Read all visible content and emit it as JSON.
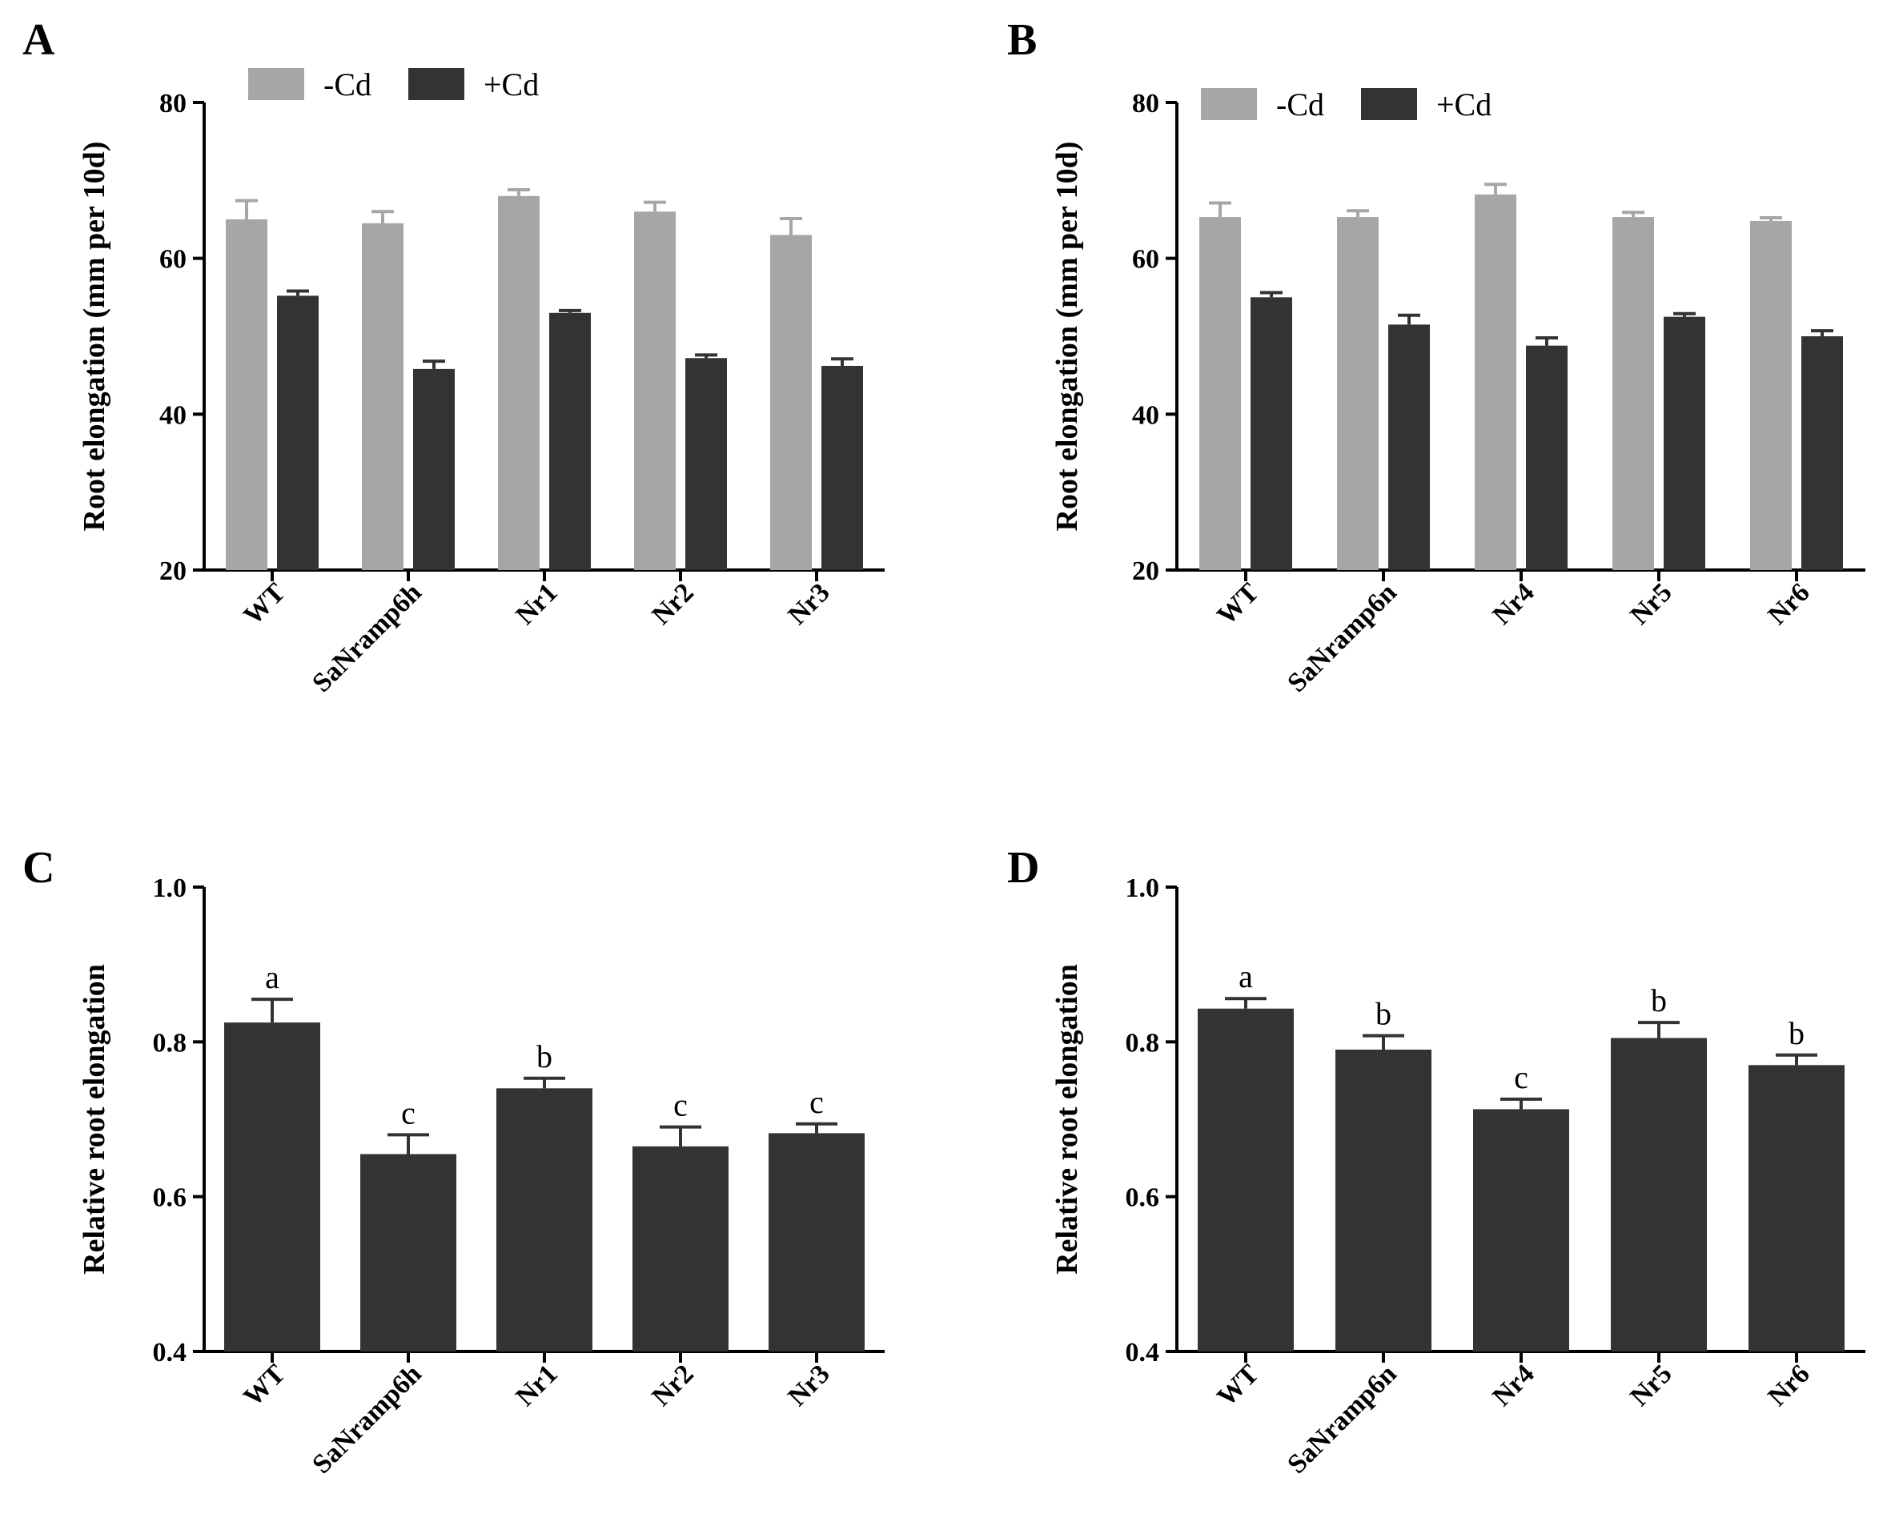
{
  "figure": {
    "colors": {
      "minus_cd": "#a6a6a6",
      "plus_cd": "#333333",
      "single": "#333333",
      "axis": "#000000"
    }
  },
  "chart_data": [
    {
      "panel": "A",
      "type": "bar",
      "ylabel": "Root elongation (mm per 10d)",
      "ylim": [
        20,
        80
      ],
      "yticks": [
        20,
        40,
        60,
        80
      ],
      "categories": [
        "WT",
        "SaNramp6h",
        "Nr1",
        "Nr2",
        "Nr3"
      ],
      "legend": [
        "-Cd",
        "+Cd"
      ],
      "legend_position": "top-left",
      "series": [
        {
          "name": "-Cd",
          "values": [
            65,
            64.5,
            68,
            66,
            63
          ],
          "errors": [
            2.4,
            1.5,
            0.8,
            1.2,
            2.1
          ]
        },
        {
          "name": "+Cd",
          "values": [
            55.2,
            45.8,
            53,
            47.2,
            46.2
          ],
          "errors": [
            0.6,
            1.0,
            0.3,
            0.4,
            0.9
          ]
        }
      ]
    },
    {
      "panel": "B",
      "type": "bar",
      "ylabel": "Root elongation (mm per 10d)",
      "ylim": [
        20,
        80
      ],
      "yticks": [
        20,
        40,
        60,
        80
      ],
      "categories": [
        "WT",
        "SaNramp6n",
        "Nr4",
        "Nr5",
        "Nr6"
      ],
      "legend": [
        "-Cd",
        "+Cd"
      ],
      "legend_position": "top-left",
      "series": [
        {
          "name": "-Cd",
          "values": [
            65.3,
            65.3,
            68.2,
            65.3,
            64.8
          ],
          "errors": [
            1.8,
            0.8,
            1.3,
            0.6,
            0.4
          ]
        },
        {
          "name": "+Cd",
          "values": [
            55,
            51.5,
            48.8,
            52.5,
            50
          ],
          "errors": [
            0.6,
            1.2,
            1.0,
            0.4,
            0.7
          ]
        }
      ]
    },
    {
      "panel": "C",
      "type": "bar",
      "ylabel": "Relative root elongation",
      "ylim": [
        0.4,
        1.0
      ],
      "yticks": [
        "0.4",
        "0.6",
        "0.8",
        "1.0"
      ],
      "categories": [
        "WT",
        "SaNramp6h",
        "Nr1",
        "Nr2",
        "Nr3"
      ],
      "values": [
        0.825,
        0.655,
        0.74,
        0.665,
        0.682
      ],
      "errors": [
        0.03,
        0.025,
        0.013,
        0.025,
        0.012
      ],
      "annotations": [
        "a",
        "c",
        "b",
        "c",
        "c"
      ]
    },
    {
      "panel": "D",
      "type": "bar",
      "ylabel": "Relative root elongation",
      "ylim": [
        0.4,
        1.0
      ],
      "yticks": [
        "0.4",
        "0.6",
        "0.8",
        "1.0"
      ],
      "categories": [
        "WT",
        "SaNramp6n",
        "Nr4",
        "Nr5",
        "Nr6"
      ],
      "values": [
        0.843,
        0.79,
        0.713,
        0.805,
        0.77
      ],
      "errors": [
        0.013,
        0.018,
        0.013,
        0.02,
        0.013
      ],
      "annotations": [
        "a",
        "b",
        "c",
        "b",
        "b"
      ]
    }
  ]
}
